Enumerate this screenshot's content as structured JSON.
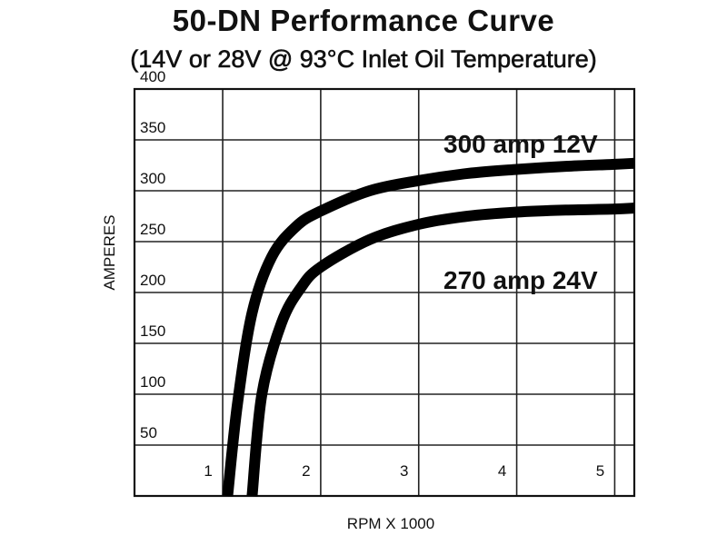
{
  "title": "50-DN Performance Curve",
  "subtitle": "(14V or 28V @ 93°C Inlet Oil Temperature)",
  "chart_data": {
    "type": "line",
    "title": "50-DN Performance Curve",
    "subtitle": "(14V or 28V @ 93°C Inlet Oil Temperature)",
    "xlabel": "RPM  X 1000",
    "ylabel": "AMPERES",
    "x_ticks": [
      "1",
      "2",
      "3",
      "4",
      "5"
    ],
    "y_ticks": [
      "50",
      "100",
      "150",
      "200",
      "250",
      "300",
      "350",
      "400"
    ],
    "xlim": [
      0.1,
      5.2
    ],
    "ylim": [
      0,
      400
    ],
    "grid": true,
    "series": [
      {
        "name": "300 amp 12V",
        "color": "#000000",
        "x": [
          1.05,
          1.15,
          1.3,
          1.5,
          1.75,
          2.0,
          2.5,
          3.0,
          3.5,
          4.0,
          4.5,
          5.0,
          5.2
        ],
        "y": [
          0,
          90,
          180,
          235,
          265,
          280,
          300,
          310,
          317,
          321,
          324,
          326,
          327
        ]
      },
      {
        "name": "270 amp 24V",
        "color": "#000000",
        "x": [
          1.3,
          1.4,
          1.6,
          1.8,
          2.0,
          2.5,
          3.0,
          3.5,
          4.0,
          4.5,
          5.0,
          5.2
        ],
        "y": [
          0,
          100,
          170,
          205,
          225,
          252,
          267,
          275,
          279,
          281,
          282,
          283
        ]
      }
    ]
  }
}
